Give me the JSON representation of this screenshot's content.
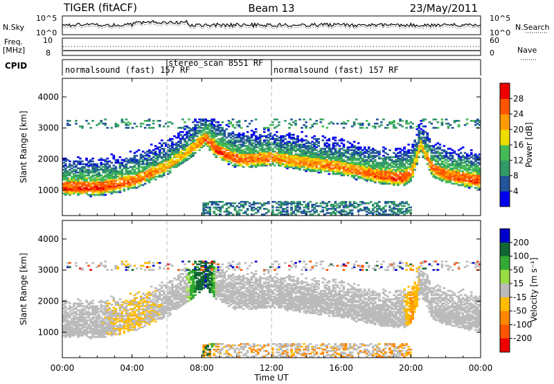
{
  "header": {
    "station": "TIGER (fitACF)",
    "beam": "Beam 13",
    "date": "23/May/2011"
  },
  "top_panels": {
    "nsky_label": "N.Sky",
    "nsky_top": "10^5",
    "nsky_bottom": "10^0",
    "nsearch_label": "N.Search",
    "nsearch_top": "10^5",
    "nsearch_bottom": "10^0",
    "freq_label": "Freq.",
    "freq_unit": "[MHz]",
    "freq_top": "10",
    "freq_bottom": "8",
    "nave_label": "Nave",
    "nave_top": "60",
    "nave_bottom": "0",
    "cpid_label": "CPID",
    "cpid_segments": [
      {
        "label": "normalsound (fast) 157 RF",
        "start": 0,
        "end": 6
      },
      {
        "label": "stereo_scan 8551 RF",
        "start": 6,
        "end": 12
      },
      {
        "label": "normalsound (fast) 157 RF",
        "start": 12,
        "end": 24
      }
    ]
  },
  "xaxis": {
    "title": "Time UT",
    "ticks": [
      "00:00",
      "04:00",
      "08:00",
      "12:00",
      "16:00",
      "20:00",
      "00:00"
    ]
  },
  "colorbars": {
    "power": {
      "title": "Power [dB]",
      "labels": [
        "4",
        "8",
        "12",
        "16",
        "20",
        "24",
        "28"
      ],
      "colors": [
        "#0000ee",
        "#225599",
        "#339966",
        "#44bb55",
        "#eedd00",
        "#ff9900",
        "#ff5500",
        "#ee0000"
      ]
    },
    "velocity": {
      "title": "Velocity [m s⁻¹]",
      "labels": [
        "200",
        "100",
        "50",
        "15",
        "-15",
        "-50",
        "-100",
        "-200"
      ],
      "colors": [
        "#0000cc",
        "#116633",
        "#33aa33",
        "#99dd44",
        "#bbbbbb",
        "#ffbb00",
        "#ff8800",
        "#ff5500",
        "#ee0000"
      ]
    }
  },
  "chart_data": [
    {
      "type": "heatmap",
      "title": "Power",
      "xlabel": "Time UT",
      "ylabel": "Slant Range [km]",
      "xlim": [
        0,
        24
      ],
      "ylim": [
        180,
        4600
      ],
      "yticks": [
        1000,
        2000,
        3000,
        4000
      ],
      "colorbar": {
        "label": "Power [dB]",
        "range": [
          0,
          32
        ],
        "ticks": [
          4,
          8,
          12,
          16,
          20,
          24,
          28
        ]
      },
      "bands": [
        {
          "name": "main echo band (slant range, km)",
          "t": [
            0,
            2,
            4,
            6,
            7,
            8.2,
            8.8,
            10,
            12,
            14,
            16,
            18,
            19.5,
            20,
            20.5,
            21.2,
            22,
            24
          ],
          "range": [
            1000,
            1000,
            1200,
            1700,
            2100,
            2600,
            2200,
            1900,
            1950,
            1800,
            1650,
            1400,
            1300,
            1500,
            2400,
            1600,
            1400,
            1200
          ],
          "power_dB": [
            28,
            28,
            26,
            22,
            20,
            26,
            28,
            26,
            24,
            24,
            24,
            26,
            28,
            24,
            20,
            26,
            26,
            28
          ]
        }
      ]
    },
    {
      "type": "heatmap",
      "title": "Velocity",
      "xlabel": "Time UT",
      "ylabel": "Slant Range [km]",
      "xlim": [
        0,
        24
      ],
      "ylim": [
        180,
        4600
      ],
      "yticks": [
        1000,
        2000,
        3000,
        4000
      ],
      "colorbar": {
        "label": "Velocity [m s-1]",
        "range": [
          -250,
          250
        ],
        "ticks": [
          200,
          100,
          50,
          15,
          -15,
          -50,
          -100,
          -200
        ]
      },
      "bands": [
        {
          "name": "main echo band (slant range, km)",
          "t": [
            0,
            2,
            4,
            6,
            7,
            8.2,
            8.8,
            10,
            12,
            14,
            16,
            18,
            19.5,
            20,
            20.5,
            21.2,
            22,
            24
          ],
          "range": [
            1000,
            1000,
            1200,
            1700,
            2100,
            2600,
            2200,
            1900,
            1950,
            1800,
            1650,
            1400,
            1300,
            1500,
            2400,
            1600,
            1400,
            1200
          ],
          "velocity": [
            0,
            0,
            -20,
            0,
            0,
            150,
            0,
            0,
            0,
            0,
            0,
            0,
            0,
            -60,
            0,
            0,
            0,
            0
          ]
        }
      ]
    }
  ]
}
